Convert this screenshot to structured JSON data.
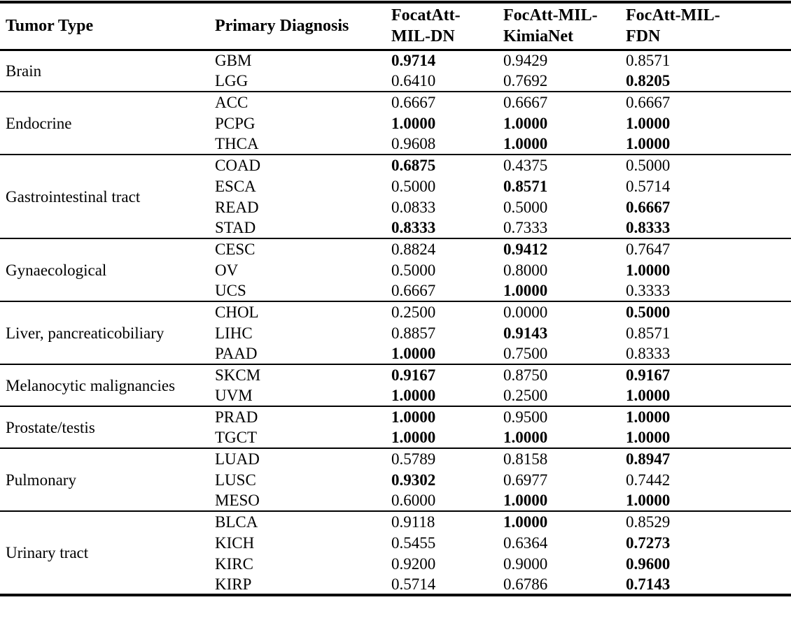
{
  "table": {
    "columns": [
      "Tumor Type",
      "Primary Diagnosis",
      "FocatAtt-\nMIL-DN",
      "FocAtt-MIL-\nKimiaNet",
      "FocAtt-MIL-\nFDN"
    ],
    "colors": {
      "rule": "#000000",
      "text": "#000000",
      "background": "#ffffff"
    },
    "groups": [
      {
        "tumor_type": "Brain",
        "rows": [
          {
            "diagnosis": "GBM",
            "values": [
              "0.9714",
              "0.9429",
              "0.8571"
            ],
            "bold": [
              true,
              false,
              false
            ]
          },
          {
            "diagnosis": "LGG",
            "values": [
              "0.6410",
              "0.7692",
              "0.8205"
            ],
            "bold": [
              false,
              false,
              true
            ]
          }
        ]
      },
      {
        "tumor_type": "Endocrine",
        "rows": [
          {
            "diagnosis": "ACC",
            "values": [
              "0.6667",
              "0.6667",
              "0.6667"
            ],
            "bold": [
              false,
              false,
              false
            ]
          },
          {
            "diagnosis": "PCPG",
            "values": [
              "1.0000",
              "1.0000",
              "1.0000"
            ],
            "bold": [
              true,
              true,
              true
            ]
          },
          {
            "diagnosis": "THCA",
            "values": [
              "0.9608",
              "1.0000",
              "1.0000"
            ],
            "bold": [
              false,
              true,
              true
            ]
          }
        ]
      },
      {
        "tumor_type": "Gastrointestinal tract",
        "rows": [
          {
            "diagnosis": "COAD",
            "values": [
              "0.6875",
              "0.4375",
              "0.5000"
            ],
            "bold": [
              true,
              false,
              false
            ]
          },
          {
            "diagnosis": "ESCA",
            "values": [
              "0.5000",
              "0.8571",
              "0.5714"
            ],
            "bold": [
              false,
              true,
              false
            ]
          },
          {
            "diagnosis": "READ",
            "values": [
              "0.0833",
              "0.5000",
              "0.6667"
            ],
            "bold": [
              false,
              false,
              true
            ]
          },
          {
            "diagnosis": "STAD",
            "values": [
              "0.8333",
              "0.7333",
              "0.8333"
            ],
            "bold": [
              true,
              false,
              true
            ]
          }
        ]
      },
      {
        "tumor_type": "Gynaecological",
        "rows": [
          {
            "diagnosis": "CESC",
            "values": [
              "0.8824",
              "0.9412",
              "0.7647"
            ],
            "bold": [
              false,
              true,
              false
            ]
          },
          {
            "diagnosis": "OV",
            "values": [
              "0.5000",
              "0.8000",
              "1.0000"
            ],
            "bold": [
              false,
              false,
              true
            ]
          },
          {
            "diagnosis": "UCS",
            "values": [
              "0.6667",
              "1.0000",
              "0.3333"
            ],
            "bold": [
              false,
              true,
              false
            ]
          }
        ]
      },
      {
        "tumor_type": "Liver, pancreaticobiliary",
        "rows": [
          {
            "diagnosis": "CHOL",
            "values": [
              "0.2500",
              "0.0000",
              "0.5000"
            ],
            "bold": [
              false,
              false,
              true
            ]
          },
          {
            "diagnosis": "LIHC",
            "values": [
              "0.8857",
              "0.9143",
              "0.8571"
            ],
            "bold": [
              false,
              true,
              false
            ]
          },
          {
            "diagnosis": "PAAD",
            "values": [
              "1.0000",
              "0.7500",
              "0.8333"
            ],
            "bold": [
              true,
              false,
              false
            ]
          }
        ]
      },
      {
        "tumor_type": "Melanocytic malignancies",
        "rows": [
          {
            "diagnosis": "SKCM",
            "values": [
              "0.9167",
              "0.8750",
              "0.9167"
            ],
            "bold": [
              true,
              false,
              true
            ]
          },
          {
            "diagnosis": "UVM",
            "values": [
              "1.0000",
              "0.2500",
              "1.0000"
            ],
            "bold": [
              true,
              false,
              true
            ]
          }
        ]
      },
      {
        "tumor_type": "Prostate/testis",
        "rows": [
          {
            "diagnosis": "PRAD",
            "values": [
              "1.0000",
              "0.9500",
              "1.0000"
            ],
            "bold": [
              true,
              false,
              true
            ]
          },
          {
            "diagnosis": "TGCT",
            "values": [
              "1.0000",
              "1.0000",
              "1.0000"
            ],
            "bold": [
              true,
              true,
              true
            ]
          }
        ]
      },
      {
        "tumor_type": "Pulmonary",
        "rows": [
          {
            "diagnosis": "LUAD",
            "values": [
              "0.5789",
              "0.8158",
              "0.8947"
            ],
            "bold": [
              false,
              false,
              true
            ]
          },
          {
            "diagnosis": "LUSC",
            "values": [
              "0.9302",
              "0.6977",
              "0.7442"
            ],
            "bold": [
              true,
              false,
              false
            ]
          },
          {
            "diagnosis": "MESO",
            "values": [
              "0.6000",
              "1.0000",
              "1.0000"
            ],
            "bold": [
              false,
              true,
              true
            ]
          }
        ]
      },
      {
        "tumor_type": "Urinary tract",
        "rows": [
          {
            "diagnosis": "BLCA",
            "values": [
              "0.9118",
              "1.0000",
              "0.8529"
            ],
            "bold": [
              false,
              true,
              false
            ]
          },
          {
            "diagnosis": "KICH",
            "values": [
              "0.5455",
              "0.6364",
              "0.7273"
            ],
            "bold": [
              false,
              false,
              true
            ]
          },
          {
            "diagnosis": "KIRC",
            "values": [
              "0.9200",
              "0.9000",
              "0.9600"
            ],
            "bold": [
              false,
              false,
              true
            ]
          },
          {
            "diagnosis": "KIRP",
            "values": [
              "0.5714",
              "0.6786",
              "0.7143"
            ],
            "bold": [
              false,
              false,
              true
            ]
          }
        ]
      }
    ]
  }
}
